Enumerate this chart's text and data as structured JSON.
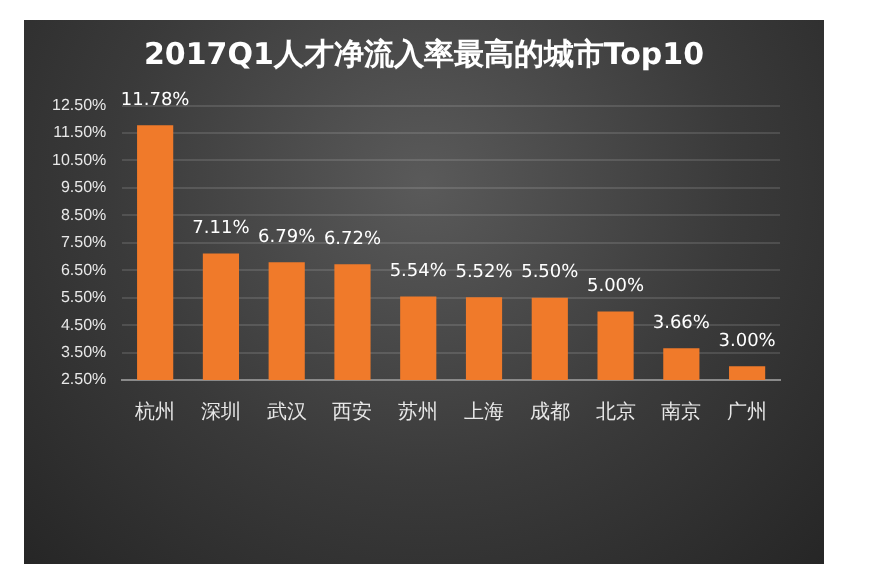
{
  "chart_data": {
    "type": "bar",
    "title": "2017Q1人才净流入率最高的城市Top10",
    "categories": [
      "杭州",
      "深圳",
      "武汉",
      "西安",
      "苏州",
      "上海",
      "成都",
      "北京",
      "南京",
      "广州"
    ],
    "values": [
      11.78,
      7.11,
      6.79,
      6.72,
      5.54,
      5.52,
      5.5,
      5.0,
      3.66,
      3.0
    ],
    "value_labels": [
      "11.78%",
      "7.11%",
      "6.79%",
      "6.72%",
      "5.54%",
      "5.52%",
      "5.50%",
      "5.00%",
      "3.66%",
      "3.00%"
    ],
    "color": "#f07a2a",
    "ylim": [
      2.5,
      12.5
    ],
    "yticks": [
      {
        "value": 2.5,
        "label": "2.50%"
      },
      {
        "value": 3.5,
        "label": "3.50%"
      },
      {
        "value": 4.5,
        "label": "4.50%"
      },
      {
        "value": 5.5,
        "label": "5.50%"
      },
      {
        "value": 6.5,
        "label": "6.50%"
      },
      {
        "value": 7.5,
        "label": "7.50%"
      },
      {
        "value": 8.5,
        "label": "8.50%"
      },
      {
        "value": 9.5,
        "label": "9.50%"
      },
      {
        "value": 10.5,
        "label": "10.50%"
      },
      {
        "value": 11.5,
        "label": "11.50%"
      },
      {
        "value": 12.5,
        "label": "12.50%"
      }
    ],
    "grid": "y",
    "legend": false
  }
}
